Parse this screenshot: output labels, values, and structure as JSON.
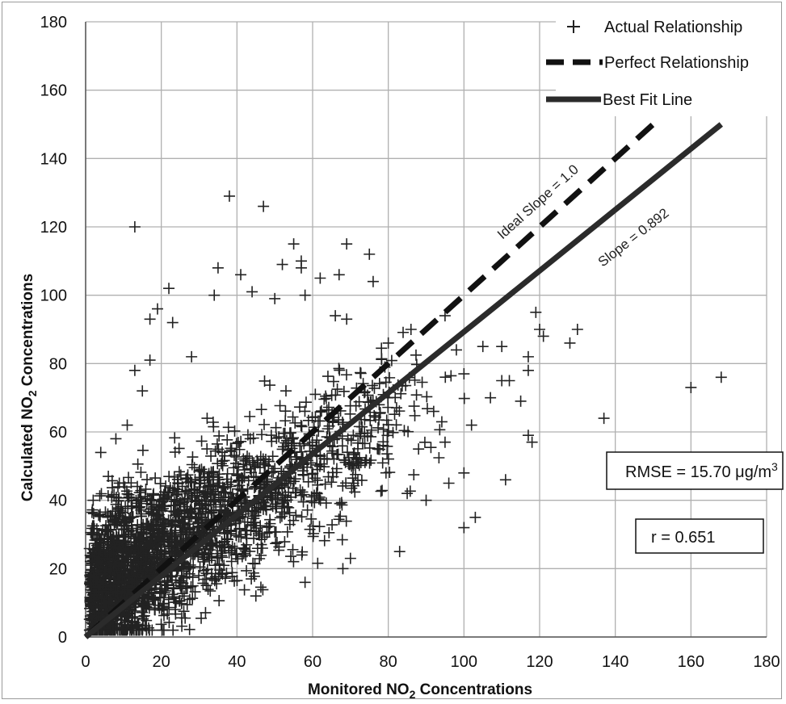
{
  "chart_data": {
    "type": "scatter",
    "xlabel": "Monitored  NO",
    "xlabel_sub": "2",
    "xlabel_suffix": " Concentrations",
    "ylabel": "Calculated NO",
    "ylabel_sub": "2",
    "ylabel_suffix": " Concentrations",
    "xlim": [
      0,
      180
    ],
    "ylim": [
      0,
      180
    ],
    "x_ticks": [
      "0",
      "20",
      "40",
      "60",
      "80",
      "100",
      "120",
      "140",
      "160",
      "180"
    ],
    "y_ticks": [
      "0",
      "20",
      "40",
      "60",
      "80",
      "100",
      "120",
      "140",
      "160",
      "180"
    ],
    "grid": true,
    "legend_position": "top-right",
    "legend": [
      "Actual Relationship",
      "Perfect Relationship",
      "Best Fit Line"
    ],
    "lines": [
      {
        "name": "Perfect Relationship",
        "style": "dashed",
        "x": [
          0,
          150
        ],
        "y": [
          0,
          150
        ]
      },
      {
        "name": "Best Fit Line",
        "style": "solid",
        "x": [
          0,
          168
        ],
        "y": [
          0,
          150
        ]
      }
    ],
    "annotations": {
      "ideal_slope": "Ideal Slope = 1.0",
      "slope": "Slope = 0.892",
      "rmse": "RMSE = 15.70 μg/m",
      "rmse_sup": "3",
      "r": "r = 0.651"
    },
    "series": [
      {
        "name": "Actual Relationship",
        "marker": "+",
        "points": [
          [
            13,
            120
          ],
          [
            38,
            129
          ],
          [
            47,
            126
          ],
          [
            22,
            102
          ],
          [
            19,
            96
          ],
          [
            23,
            92
          ],
          [
            17,
            93
          ],
          [
            35,
            108
          ],
          [
            41,
            106
          ],
          [
            55,
            115
          ],
          [
            57,
            110
          ],
          [
            57,
            108
          ],
          [
            52,
            109
          ],
          [
            62,
            105
          ],
          [
            67,
            106
          ],
          [
            69,
            115
          ],
          [
            75,
            112
          ],
          [
            76,
            104
          ],
          [
            34,
            100
          ],
          [
            44,
            101
          ],
          [
            50,
            99
          ],
          [
            66,
            94
          ],
          [
            58,
            100
          ],
          [
            69,
            93
          ],
          [
            17,
            81
          ],
          [
            28,
            82
          ],
          [
            13,
            78
          ],
          [
            15,
            72
          ],
          [
            11,
            62
          ],
          [
            8,
            58
          ],
          [
            4,
            54
          ],
          [
            6,
            47
          ],
          [
            2,
            40
          ],
          [
            119,
            95
          ],
          [
            121,
            88
          ],
          [
            120,
            90
          ],
          [
            128,
            86
          ],
          [
            130,
            90
          ],
          [
            117,
            82
          ],
          [
            115,
            69
          ],
          [
            117,
            78
          ],
          [
            118,
            57
          ],
          [
            117,
            59
          ],
          [
            137,
            64
          ],
          [
            160,
            73
          ],
          [
            168,
            76
          ],
          [
            111,
            46
          ],
          [
            103,
            35
          ],
          [
            100,
            32
          ],
          [
            95,
            94
          ],
          [
            83,
            25
          ],
          [
            70,
            23
          ],
          [
            68,
            20
          ],
          [
            45,
            12
          ],
          [
            58,
            16
          ],
          [
            105,
            85
          ],
          [
            110,
            85
          ],
          [
            100,
            77
          ],
          [
            107,
            70
          ],
          [
            102,
            62
          ],
          [
            95,
            57
          ],
          [
            100,
            48
          ],
          [
            96,
            45
          ],
          [
            90,
            40
          ],
          [
            85,
            42
          ],
          [
            88,
            55
          ],
          [
            92,
            66
          ],
          [
            110,
            75
          ],
          [
            112,
            75
          ],
          [
            98,
            84
          ],
          [
            86,
            90
          ],
          [
            80,
            86
          ]
        ]
      }
    ]
  },
  "colors": {
    "marker": "#222222",
    "line": "#2b2b2b",
    "grid": "#b0b0b0"
  }
}
